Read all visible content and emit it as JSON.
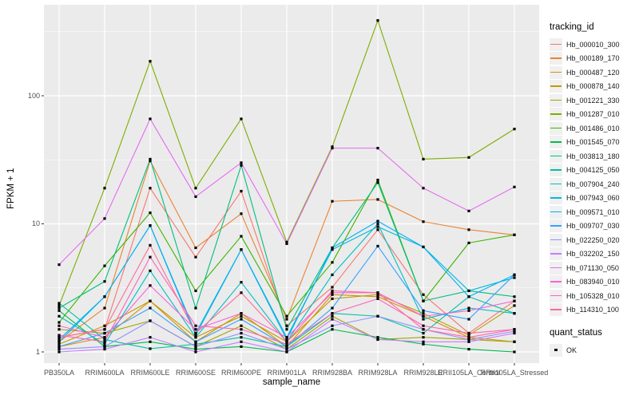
{
  "figure": {
    "background": "#FFFFFF",
    "panel_background": "#EBEBEB",
    "grid_color": "#FFFFFF",
    "tick_color": "#333333",
    "tick_label_color": "#4D4D4D",
    "marker_color": "#000000"
  },
  "chart_data": {
    "type": "line",
    "title": "",
    "xlabel": "sample_name",
    "ylabel": "FPKM + 1",
    "y_scale": "log10",
    "grid": true,
    "legend_position": "right",
    "legend_title": "tracking_id",
    "y_tick_labels": [
      "1",
      "10",
      "100"
    ],
    "y_tick_values": [
      1,
      10,
      100
    ],
    "y_minor_values": [
      3.1623,
      31.623,
      316.23
    ],
    "ylim": [
      0.82,
      513
    ],
    "categories": [
      "PB350LA",
      "RRIM600LA",
      "RRIM600LE",
      "RRIM600SE",
      "RRIM600PE",
      "RRIM901LA",
      "RRIM928BA",
      "RRIM928LA",
      "RRIM928LE",
      "RRII105LA_Control",
      "RRII105LA_Stressed"
    ],
    "series": [
      {
        "name": "Hb_000010_300",
        "color": "#F8766D",
        "values": [
          1.3,
          1.5,
          19.0,
          5.5,
          18.0,
          1.6,
          3.2,
          9.0,
          2.8,
          1.4,
          2.5
        ]
      },
      {
        "name": "Hb_000189_170",
        "color": "#EA8331",
        "values": [
          1.2,
          2.2,
          31.0,
          6.5,
          12.0,
          1.8,
          15.0,
          15.5,
          10.4,
          9.0,
          8.2
        ]
      },
      {
        "name": "Hb_000487_120",
        "color": "#D89000",
        "values": [
          1.1,
          1.3,
          2.5,
          1.2,
          2.0,
          1.1,
          2.8,
          2.7,
          1.9,
          1.3,
          1.2
        ]
      },
      {
        "name": "Hb_000878_140",
        "color": "#C09B00",
        "values": [
          1.15,
          1.6,
          2.5,
          1.3,
          1.9,
          1.2,
          2.6,
          2.8,
          2.0,
          1.35,
          2.3
        ]
      },
      {
        "name": "Hb_001221_330",
        "color": "#A3A500",
        "values": [
          1.5,
          1.4,
          1.75,
          1.1,
          1.6,
          1.05,
          1.9,
          1.25,
          1.3,
          1.25,
          1.2
        ]
      },
      {
        "name": "Hb_001287_010",
        "color": "#7CAE00",
        "values": [
          2.3,
          19.0,
          186.0,
          19.0,
          66.0,
          7.2,
          40.0,
          387.0,
          32.0,
          33.0,
          55.0
        ]
      },
      {
        "name": "Hb_001486_010",
        "color": "#39B600",
        "values": [
          1.7,
          4.7,
          12.2,
          3.0,
          8.0,
          1.9,
          5.0,
          22.0,
          2.5,
          7.1,
          8.2
        ]
      },
      {
        "name": "Hb_001545_070",
        "color": "#00BB4E",
        "values": [
          2.1,
          1.1,
          1.2,
          1.05,
          1.1,
          1.0,
          1.5,
          1.3,
          1.15,
          1.05,
          1.0
        ]
      },
      {
        "name": "Hb_003813_180",
        "color": "#00BF7D",
        "values": [
          2.2,
          3.55,
          32.0,
          2.2,
          28.6,
          1.5,
          6.5,
          21.0,
          2.5,
          3.0,
          2.7
        ]
      },
      {
        "name": "Hb_004125_050",
        "color": "#00C1A3",
        "values": [
          2.4,
          1.25,
          1.06,
          1.15,
          1.3,
          1.1,
          2.0,
          1.9,
          1.4,
          2.7,
          2.0
        ]
      },
      {
        "name": "Hb_007904_240",
        "color": "#00BFC4",
        "values": [
          1.9,
          1.15,
          4.3,
          1.3,
          3.5,
          1.2,
          4.0,
          10.0,
          1.8,
          2.2,
          2.0
        ]
      },
      {
        "name": "Hb_007943_060",
        "color": "#00BADE",
        "values": [
          1.25,
          2.7,
          9.7,
          1.4,
          6.3,
          1.3,
          6.3,
          9.5,
          6.6,
          3.0,
          3.8
        ]
      },
      {
        "name": "Hb_009571_010",
        "color": "#00B0F6",
        "values": [
          1.2,
          2.7,
          9.7,
          1.35,
          6.3,
          1.25,
          6.5,
          10.5,
          6.6,
          2.7,
          4.0
        ]
      },
      {
        "name": "Hb_009707_030",
        "color": "#35A2FF",
        "values": [
          1.1,
          1.4,
          2.2,
          1.2,
          1.8,
          1.1,
          2.2,
          6.7,
          2.1,
          1.8,
          4.0
        ]
      },
      {
        "name": "Hb_022250_020",
        "color": "#9590FF",
        "values": [
          1.05,
          1.1,
          1.75,
          1.1,
          1.4,
          1.05,
          1.6,
          1.9,
          1.5,
          1.25,
          1.45
        ]
      },
      {
        "name": "Hb_032202_150",
        "color": "#C77CFF",
        "values": [
          1.0,
          1.05,
          1.3,
          1.0,
          1.2,
          1.0,
          1.8,
          1.25,
          1.2,
          1.2,
          1.4
        ]
      },
      {
        "name": "Hb_071130_050",
        "color": "#E76BF3",
        "values": [
          4.8,
          11.0,
          66.0,
          16.3,
          30.0,
          7.0,
          39.0,
          39.0,
          19.0,
          12.6,
          19.4
        ]
      },
      {
        "name": "Hb_083940_010",
        "color": "#FA62DB",
        "values": [
          1.6,
          1.3,
          3.3,
          1.5,
          2.0,
          1.3,
          2.9,
          2.9,
          1.9,
          2.1,
          2.5
        ]
      },
      {
        "name": "Hb_105328_010",
        "color": "#FF62BC",
        "values": [
          1.35,
          1.2,
          5.5,
          1.6,
          1.5,
          1.15,
          2.0,
          2.6,
          1.6,
          1.4,
          1.5
        ]
      },
      {
        "name": "Hb_114310_100",
        "color": "#FF6A98",
        "values": [
          1.3,
          1.5,
          6.8,
          1.4,
          2.9,
          1.2,
          3.0,
          2.9,
          1.5,
          1.3,
          1.5
        ]
      }
    ],
    "quant_legend": {
      "title": "quant_status",
      "items": [
        {
          "label": "OK"
        }
      ]
    }
  }
}
